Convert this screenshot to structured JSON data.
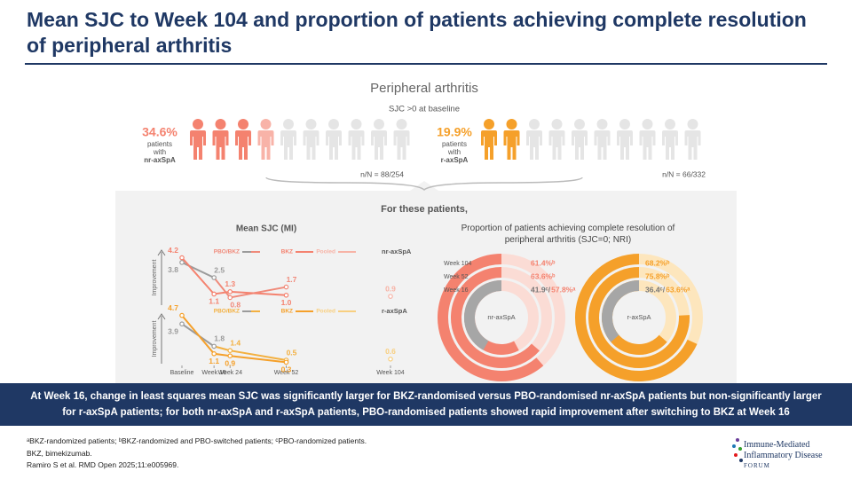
{
  "header": {
    "title": "Mean SJC to Week 104 and proportion of patients achieving complete resolution of peripheral arthritis"
  },
  "infographic": {
    "title": "Peripheral arthritis",
    "subtitle": "SJC >0 at baseline",
    "groups": [
      {
        "percent": "34.6%",
        "lines": [
          "patients",
          "with",
          "nr-axSpA"
        ],
        "count": "n/N = 88/254",
        "color": "#f4826f"
      },
      {
        "percent": "19.9%",
        "lines": [
          "patients",
          "with",
          "r-axSpA"
        ],
        "count": "n/N = 66/332",
        "color": "#f5a02a"
      }
    ],
    "transition": "For these patients,"
  },
  "chart_data": [
    {
      "type": "line",
      "title": "Mean SJC (MI)",
      "label": "nr-axSpA",
      "ylabel": "Improvement",
      "x": [
        0,
        16,
        24,
        52,
        104
      ],
      "xlim": [
        0,
        104
      ],
      "ylim": [
        0,
        5
      ],
      "series": [
        {
          "name": "PBO/BKZ",
          "color": "#f08a7a",
          "pbo_color": "#9b9b9b",
          "values": [
            3.8,
            2.5,
            0.8,
            1.7,
            null
          ],
          "value_labels": [
            "3.8",
            "2.5",
            "0.8",
            "1.7",
            null
          ]
        },
        {
          "name": "BKZ",
          "color": "#f4826f",
          "values": [
            4.2,
            1.1,
            1.3,
            1.0,
            null
          ],
          "value_labels": [
            "4.2",
            "1.1",
            "1.3",
            "1.0",
            null
          ]
        },
        {
          "name": "Pooled",
          "color": "#f7b3a6",
          "values": [
            null,
            null,
            null,
            null,
            0.9
          ],
          "value_labels": [
            null,
            null,
            null,
            null,
            "0.9"
          ]
        }
      ]
    },
    {
      "type": "line",
      "label": "r-axSpA",
      "ylabel": "Improvement",
      "x": [
        0,
        16,
        24,
        52,
        104
      ],
      "xlim": [
        0,
        104
      ],
      "ylim": [
        0,
        5
      ],
      "xticks": [
        {
          "value": 0,
          "label": "Baseline"
        },
        {
          "value": 16,
          "label": "Week 16"
        },
        {
          "value": 24,
          "label": "Week 24"
        },
        {
          "value": 52,
          "label": "Week 52"
        },
        {
          "value": 104,
          "label": "Week 104"
        }
      ],
      "series": [
        {
          "name": "PBO/BKZ",
          "color": "#f3b040",
          "pbo_color": "#9b9b9b",
          "values": [
            3.9,
            1.8,
            1.4,
            0.5,
            null
          ],
          "value_labels": [
            "3.9",
            "1.8",
            "1.4",
            "0.5",
            null
          ]
        },
        {
          "name": "BKZ",
          "color": "#f5a02a",
          "values": [
            4.7,
            1.1,
            0.9,
            0.3,
            null
          ],
          "value_labels": [
            "4.7",
            "1.1",
            "0.9",
            "0.3",
            null
          ]
        },
        {
          "name": "Pooled",
          "color": "#f8cf80",
          "values": [
            null,
            null,
            null,
            null,
            0.6
          ],
          "value_labels": [
            null,
            null,
            null,
            null,
            "0.6"
          ]
        }
      ]
    },
    {
      "type": "radial_bar",
      "title": "Proportion of patients achieving complete resolution of peripheral arthritis (SJC=0; NRI)",
      "label": "nr-axSpA",
      "categories": [
        "Week 104",
        "Week 52",
        "Week 16"
      ],
      "ylim": [
        0,
        100
      ],
      "track_color": "#fbdcd5",
      "series": [
        {
          "color": "#f4826f",
          "values": [
            61.4,
            63.6,
            57.8
          ],
          "value_labels": [
            "61.4%ᵇ",
            "63.6%ᵇ",
            "57.8%ᵃ"
          ]
        },
        {
          "color": "#a6a6a6",
          "values": [
            null,
            null,
            41.9
          ],
          "value_labels": [
            null,
            null,
            "41.9ᶜ/"
          ]
        }
      ]
    },
    {
      "type": "radial_bar",
      "label": "r-axSpA",
      "ylim": [
        0,
        100
      ],
      "track_color": "#fde6bd",
      "series": [
        {
          "color": "#f5a02a",
          "values": [
            68.2,
            75.8,
            63.6
          ],
          "value_labels": [
            "68.2%ᵇ",
            "75.8%ᵇ",
            "63.6%ᵃ"
          ]
        },
        {
          "color": "#a6a6a6",
          "values": [
            null,
            null,
            36.4
          ],
          "value_labels": [
            null,
            null,
            "36.4ᶜ/"
          ]
        }
      ]
    }
  ],
  "banner": "At Week 16, change in least squares mean SJC was significantly larger for BKZ-randomised versus PBO-randomised nr-axSpA patients but non-significantly larger for r-axSpA patients; for both nr-axSpA and r-axSpA patients, PBO-randomised patients showed rapid improvement after switching to BKZ at Week 16",
  "footnotes": [
    "ᵃBKZ-randomized patients; ᵇBKZ-randomized and PBO-switched patients; ᶜPBO-randomized patients.",
    "BKZ, bimekizumab.",
    "Ramiro S et al. RMD Open 2025;11:e005969."
  ],
  "logo": [
    "Immune-Mediated",
    "Inflammatory Disease",
    "FORUM"
  ]
}
